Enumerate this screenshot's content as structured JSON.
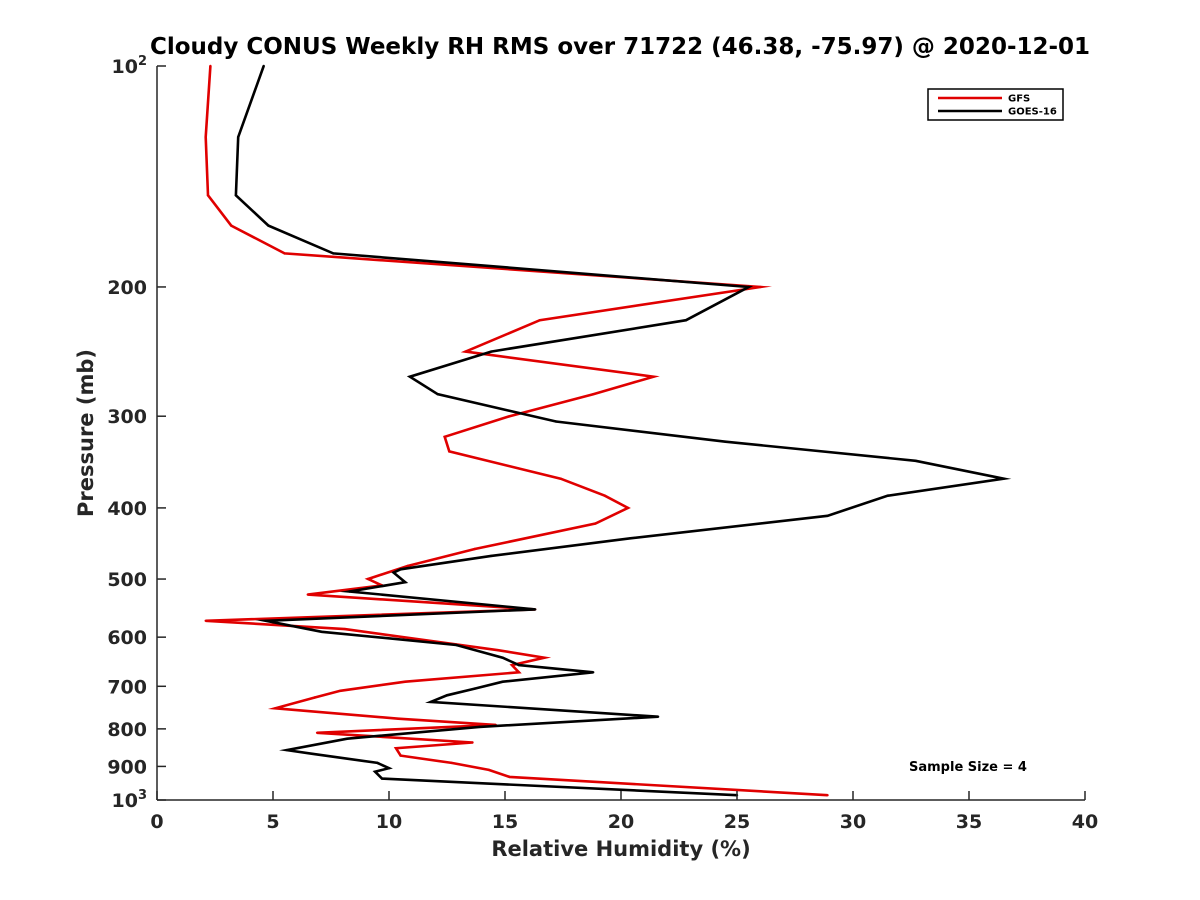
{
  "chart_data": {
    "type": "line",
    "title": "Cloudy CONUS Weekly RH RMS over 71722 (46.38, -75.97) @ 2020-12-01",
    "xlabel": "Relative Humidity (%)",
    "ylabel": "Pressure (mb)",
    "xlim": [
      0,
      40
    ],
    "ylim": [
      100,
      1000
    ],
    "yscale": "log",
    "yreversed": true,
    "x_ticks": [
      "0",
      "5",
      "10",
      "15",
      "20",
      "25",
      "30",
      "35",
      "40"
    ],
    "y_ticks": [
      {
        "value": 100,
        "base": "10",
        "exp": "2"
      },
      {
        "value": 200,
        "label": "200"
      },
      {
        "value": 300,
        "label": "300"
      },
      {
        "value": 400,
        "label": "400"
      },
      {
        "value": 500,
        "label": "500"
      },
      {
        "value": 600,
        "label": "600"
      },
      {
        "value": 700,
        "label": "700"
      },
      {
        "value": 800,
        "label": "800"
      },
      {
        "value": 900,
        "label": "900"
      },
      {
        "value": 1000,
        "base": "10",
        "exp": "3"
      }
    ],
    "legend": {
      "position": "top-right",
      "entries": [
        "GFS",
        "GOES-16"
      ]
    },
    "annotation": "Sample Size = 4",
    "series": [
      {
        "name": "GFS",
        "color": "#e00000",
        "points": [
          [
            2.3,
            100
          ],
          [
            2.1,
            125
          ],
          [
            2.2,
            150
          ],
          [
            3.2,
            165
          ],
          [
            5.5,
            180
          ],
          [
            26.0,
            200
          ],
          [
            16.5,
            222
          ],
          [
            13.3,
            245
          ],
          [
            21.4,
            265
          ],
          [
            18.8,
            280
          ],
          [
            15.2,
            300
          ],
          [
            12.4,
            320
          ],
          [
            12.6,
            335
          ],
          [
            17.4,
            365
          ],
          [
            19.3,
            385
          ],
          [
            20.3,
            400
          ],
          [
            18.9,
            420
          ],
          [
            13.7,
            455
          ],
          [
            10.8,
            480
          ],
          [
            9.1,
            500
          ],
          [
            9.7,
            510
          ],
          [
            6.5,
            525
          ],
          [
            16.3,
            550
          ],
          [
            2.1,
            570
          ],
          [
            8.1,
            585
          ],
          [
            14.7,
            625
          ],
          [
            16.7,
            640
          ],
          [
            15.3,
            655
          ],
          [
            15.6,
            670
          ],
          [
            10.7,
            690
          ],
          [
            7.9,
            710
          ],
          [
            6.8,
            725
          ],
          [
            5.1,
            750
          ],
          [
            10.4,
            775
          ],
          [
            14.6,
            790
          ],
          [
            6.9,
            810
          ],
          [
            13.6,
            835
          ],
          [
            10.3,
            850
          ],
          [
            10.5,
            870
          ],
          [
            12.7,
            890
          ],
          [
            14.3,
            910
          ],
          [
            15.2,
            930
          ],
          [
            28.9,
            985
          ]
        ]
      },
      {
        "name": "GOES-16",
        "color": "#000000",
        "points": [
          [
            4.6,
            100
          ],
          [
            3.5,
            125
          ],
          [
            3.4,
            150
          ],
          [
            4.8,
            165
          ],
          [
            7.6,
            180
          ],
          [
            25.5,
            200
          ],
          [
            22.8,
            222
          ],
          [
            14.4,
            245
          ],
          [
            10.9,
            265
          ],
          [
            12.1,
            280
          ],
          [
            17.2,
            305
          ],
          [
            24.5,
            325
          ],
          [
            32.7,
            345
          ],
          [
            36.5,
            365
          ],
          [
            31.5,
            385
          ],
          [
            28.9,
            410
          ],
          [
            20.4,
            440
          ],
          [
            14.4,
            465
          ],
          [
            10.5,
            485
          ],
          [
            10.2,
            490
          ],
          [
            10.7,
            505
          ],
          [
            8.3,
            520
          ],
          [
            16.3,
            550
          ],
          [
            4.7,
            570
          ],
          [
            7.1,
            590
          ],
          [
            12.9,
            615
          ],
          [
            14.9,
            640
          ],
          [
            15.6,
            655
          ],
          [
            18.8,
            670
          ],
          [
            14.9,
            690
          ],
          [
            13.7,
            705
          ],
          [
            12.5,
            720
          ],
          [
            11.8,
            735
          ],
          [
            21.6,
            770
          ],
          [
            13.9,
            795
          ],
          [
            8.2,
            825
          ],
          [
            5.6,
            855
          ],
          [
            6.7,
            865
          ],
          [
            9.5,
            890
          ],
          [
            10.0,
            905
          ],
          [
            9.4,
            915
          ],
          [
            9.7,
            935
          ],
          [
            25.0,
            985
          ]
        ]
      }
    ]
  }
}
